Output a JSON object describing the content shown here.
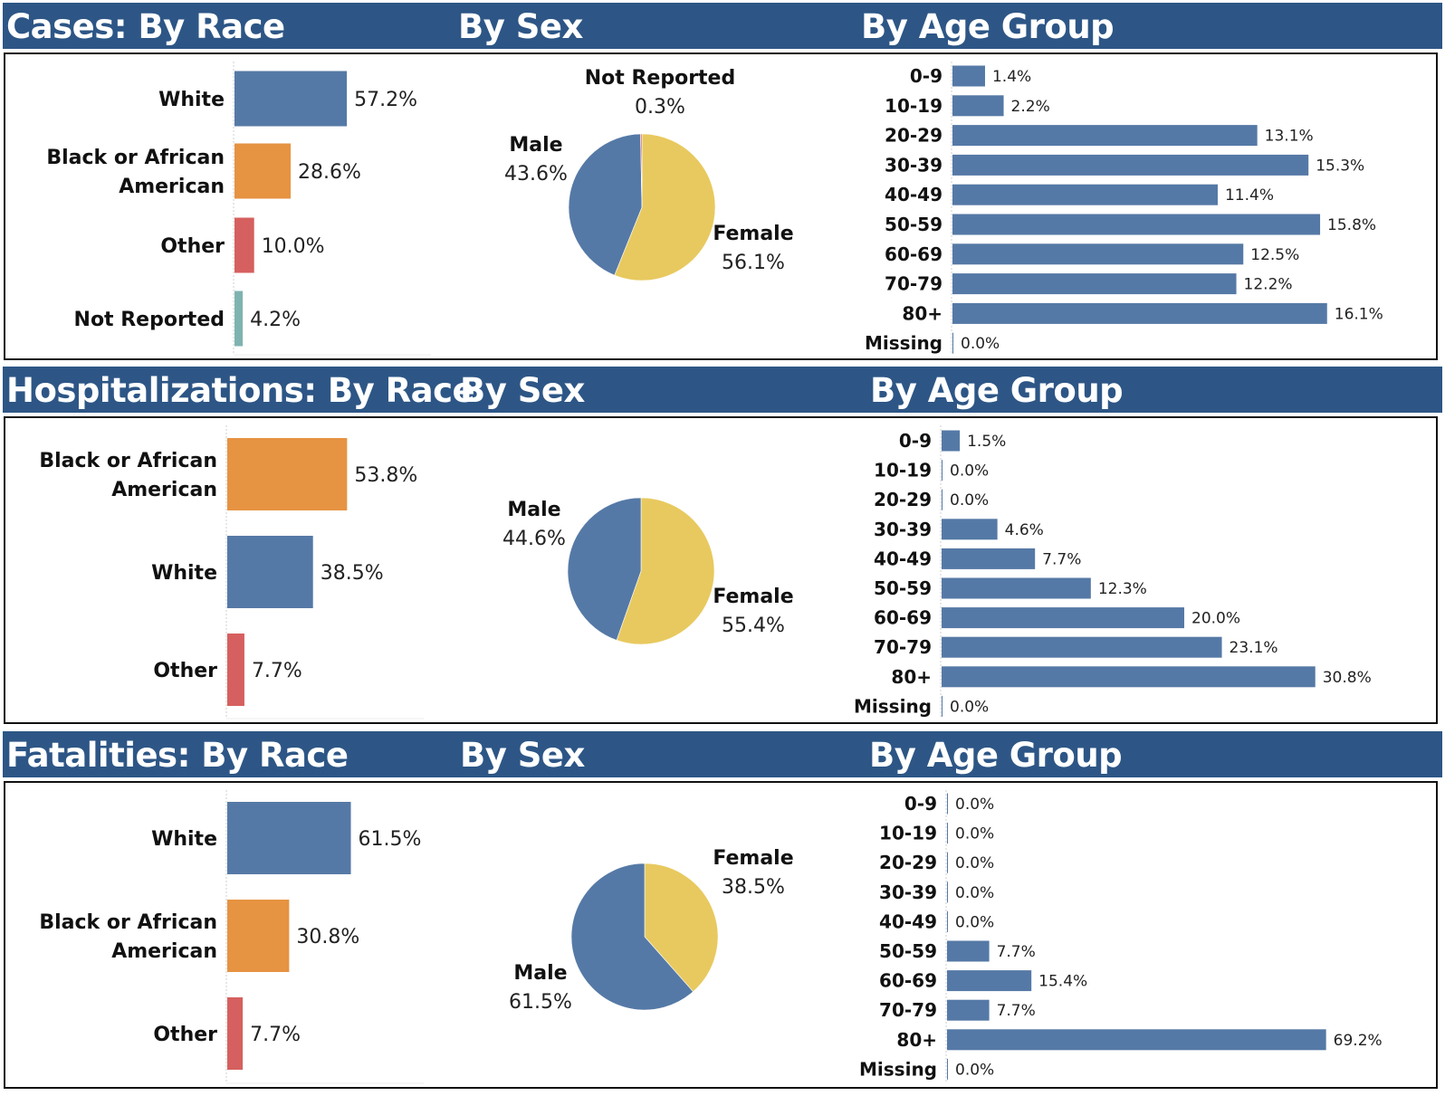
{
  "colors": {
    "header_bg": "#2d5686",
    "White": "#5579a6",
    "Black or African American": "#e69342",
    "Other": "#d5605f",
    "Not Reported": "#7fb3b0",
    "male": "#5579a6",
    "female": "#e8c95f",
    "not_reported_sex": "#d5605f",
    "age_bar": "#5579a6"
  },
  "sections": [
    {
      "id": "cases",
      "title_race": "Cases: By Race",
      "title_sex": "By Sex",
      "title_age": "By Age Group",
      "race": [
        {
          "label": "White",
          "value": 57.2,
          "text": "57.2%"
        },
        {
          "label": "Black or African American",
          "value": 28.6,
          "text": "28.6%"
        },
        {
          "label": "Other",
          "value": 10.0,
          "text": "10.0%"
        },
        {
          "label": "Not Reported",
          "value": 4.2,
          "text": "4.2%"
        }
      ],
      "sex": [
        {
          "label": "Female",
          "value": 56.1,
          "text": "56.1%"
        },
        {
          "label": "Male",
          "value": 43.6,
          "text": "43.6%"
        },
        {
          "label": "Not Reported",
          "value": 0.3,
          "text": "0.3%"
        }
      ],
      "age": [
        {
          "label": "0-9",
          "value": 1.4,
          "text": "1.4%"
        },
        {
          "label": "10-19",
          "value": 2.2,
          "text": "2.2%"
        },
        {
          "label": "20-29",
          "value": 13.1,
          "text": "13.1%"
        },
        {
          "label": "30-39",
          "value": 15.3,
          "text": "15.3%"
        },
        {
          "label": "40-49",
          "value": 11.4,
          "text": "11.4%"
        },
        {
          "label": "50-59",
          "value": 15.8,
          "text": "15.8%"
        },
        {
          "label": "60-69",
          "value": 12.5,
          "text": "12.5%"
        },
        {
          "label": "70-79",
          "value": 12.2,
          "text": "12.2%"
        },
        {
          "label": "80+",
          "value": 16.1,
          "text": "16.1%"
        },
        {
          "label": "Missing",
          "value": 0.0,
          "text": "0.0%"
        }
      ]
    },
    {
      "id": "hospitalizations",
      "title_race": "Hospitalizations: By Race",
      "title_sex": "By Sex",
      "title_age": "By Age Group",
      "race": [
        {
          "label": "Black or African American",
          "value": 53.8,
          "text": "53.8%"
        },
        {
          "label": "White",
          "value": 38.5,
          "text": "38.5%"
        },
        {
          "label": "Other",
          "value": 7.7,
          "text": "7.7%"
        }
      ],
      "sex": [
        {
          "label": "Female",
          "value": 55.4,
          "text": "55.4%"
        },
        {
          "label": "Male",
          "value": 44.6,
          "text": "44.6%"
        }
      ],
      "age": [
        {
          "label": "0-9",
          "value": 1.5,
          "text": "1.5%"
        },
        {
          "label": "10-19",
          "value": 0.0,
          "text": "0.0%"
        },
        {
          "label": "20-29",
          "value": 0.0,
          "text": "0.0%"
        },
        {
          "label": "30-39",
          "value": 4.6,
          "text": "4.6%"
        },
        {
          "label": "40-49",
          "value": 7.7,
          "text": "7.7%"
        },
        {
          "label": "50-59",
          "value": 12.3,
          "text": "12.3%"
        },
        {
          "label": "60-69",
          "value": 20.0,
          "text": "20.0%"
        },
        {
          "label": "70-79",
          "value": 23.1,
          "text": "23.1%"
        },
        {
          "label": "80+",
          "value": 30.8,
          "text": "30.8%"
        },
        {
          "label": "Missing",
          "value": 0.0,
          "text": "0.0%"
        }
      ]
    },
    {
      "id": "fatalities",
      "title_race": "Fatalities: By Race",
      "title_sex": "By Sex",
      "title_age": "By Age Group",
      "race": [
        {
          "label": "White",
          "value": 61.5,
          "text": "61.5%"
        },
        {
          "label": "Black or African American",
          "value": 30.8,
          "text": "30.8%"
        },
        {
          "label": "Other",
          "value": 7.7,
          "text": "7.7%"
        }
      ],
      "sex": [
        {
          "label": "Female",
          "value": 38.5,
          "text": "38.5%"
        },
        {
          "label": "Male",
          "value": 61.5,
          "text": "61.5%"
        }
      ],
      "age": [
        {
          "label": "0-9",
          "value": 0.0,
          "text": "0.0%"
        },
        {
          "label": "10-19",
          "value": 0.0,
          "text": "0.0%"
        },
        {
          "label": "20-29",
          "value": 0.0,
          "text": "0.0%"
        },
        {
          "label": "30-39",
          "value": 0.0,
          "text": "0.0%"
        },
        {
          "label": "40-49",
          "value": 0.0,
          "text": "0.0%"
        },
        {
          "label": "50-59",
          "value": 7.7,
          "text": "7.7%"
        },
        {
          "label": "60-69",
          "value": 15.4,
          "text": "15.4%"
        },
        {
          "label": "70-79",
          "value": 7.7,
          "text": "7.7%"
        },
        {
          "label": "80+",
          "value": 69.2,
          "text": "69.2%"
        },
        {
          "label": "Missing",
          "value": 0.0,
          "text": "0.0%"
        }
      ]
    }
  ],
  "chart_data": [
    {
      "type": "bar",
      "title": "Cases: By Race",
      "orientation": "horizontal",
      "categories": [
        "White",
        "Black or African American",
        "Other",
        "Not Reported"
      ],
      "values": [
        57.2,
        28.6,
        10.0,
        4.2
      ],
      "unit": "%"
    },
    {
      "type": "pie",
      "title": "Cases: By Sex",
      "categories": [
        "Female",
        "Male",
        "Not Reported"
      ],
      "values": [
        56.1,
        43.6,
        0.3
      ],
      "unit": "%"
    },
    {
      "type": "bar",
      "title": "Cases: By Age Group",
      "orientation": "horizontal",
      "categories": [
        "0-9",
        "10-19",
        "20-29",
        "30-39",
        "40-49",
        "50-59",
        "60-69",
        "70-79",
        "80+",
        "Missing"
      ],
      "values": [
        1.4,
        2.2,
        13.1,
        15.3,
        11.4,
        15.8,
        12.5,
        12.2,
        16.1,
        0.0
      ],
      "unit": "%"
    },
    {
      "type": "bar",
      "title": "Hospitalizations: By Race",
      "orientation": "horizontal",
      "categories": [
        "Black or African American",
        "White",
        "Other"
      ],
      "values": [
        53.8,
        38.5,
        7.7
      ],
      "unit": "%"
    },
    {
      "type": "pie",
      "title": "Hospitalizations: By Sex",
      "categories": [
        "Female",
        "Male"
      ],
      "values": [
        55.4,
        44.6
      ],
      "unit": "%"
    },
    {
      "type": "bar",
      "title": "Hospitalizations: By Age Group",
      "orientation": "horizontal",
      "categories": [
        "0-9",
        "10-19",
        "20-29",
        "30-39",
        "40-49",
        "50-59",
        "60-69",
        "70-79",
        "80+",
        "Missing"
      ],
      "values": [
        1.5,
        0.0,
        0.0,
        4.6,
        7.7,
        12.3,
        20.0,
        23.1,
        30.8,
        0.0
      ],
      "unit": "%"
    },
    {
      "type": "bar",
      "title": "Fatalities: By Race",
      "orientation": "horizontal",
      "categories": [
        "White",
        "Black or African American",
        "Other"
      ],
      "values": [
        61.5,
        30.8,
        7.7
      ],
      "unit": "%"
    },
    {
      "type": "pie",
      "title": "Fatalities: By Sex",
      "categories": [
        "Female",
        "Male"
      ],
      "values": [
        38.5,
        61.5
      ],
      "unit": "%"
    },
    {
      "type": "bar",
      "title": "Fatalities: By Age Group",
      "orientation": "horizontal",
      "categories": [
        "0-9",
        "10-19",
        "20-29",
        "30-39",
        "40-49",
        "50-59",
        "60-69",
        "70-79",
        "80+",
        "Missing"
      ],
      "values": [
        0.0,
        0.0,
        0.0,
        0.0,
        0.0,
        7.7,
        15.4,
        7.7,
        69.2,
        0.0
      ],
      "unit": "%"
    }
  ]
}
